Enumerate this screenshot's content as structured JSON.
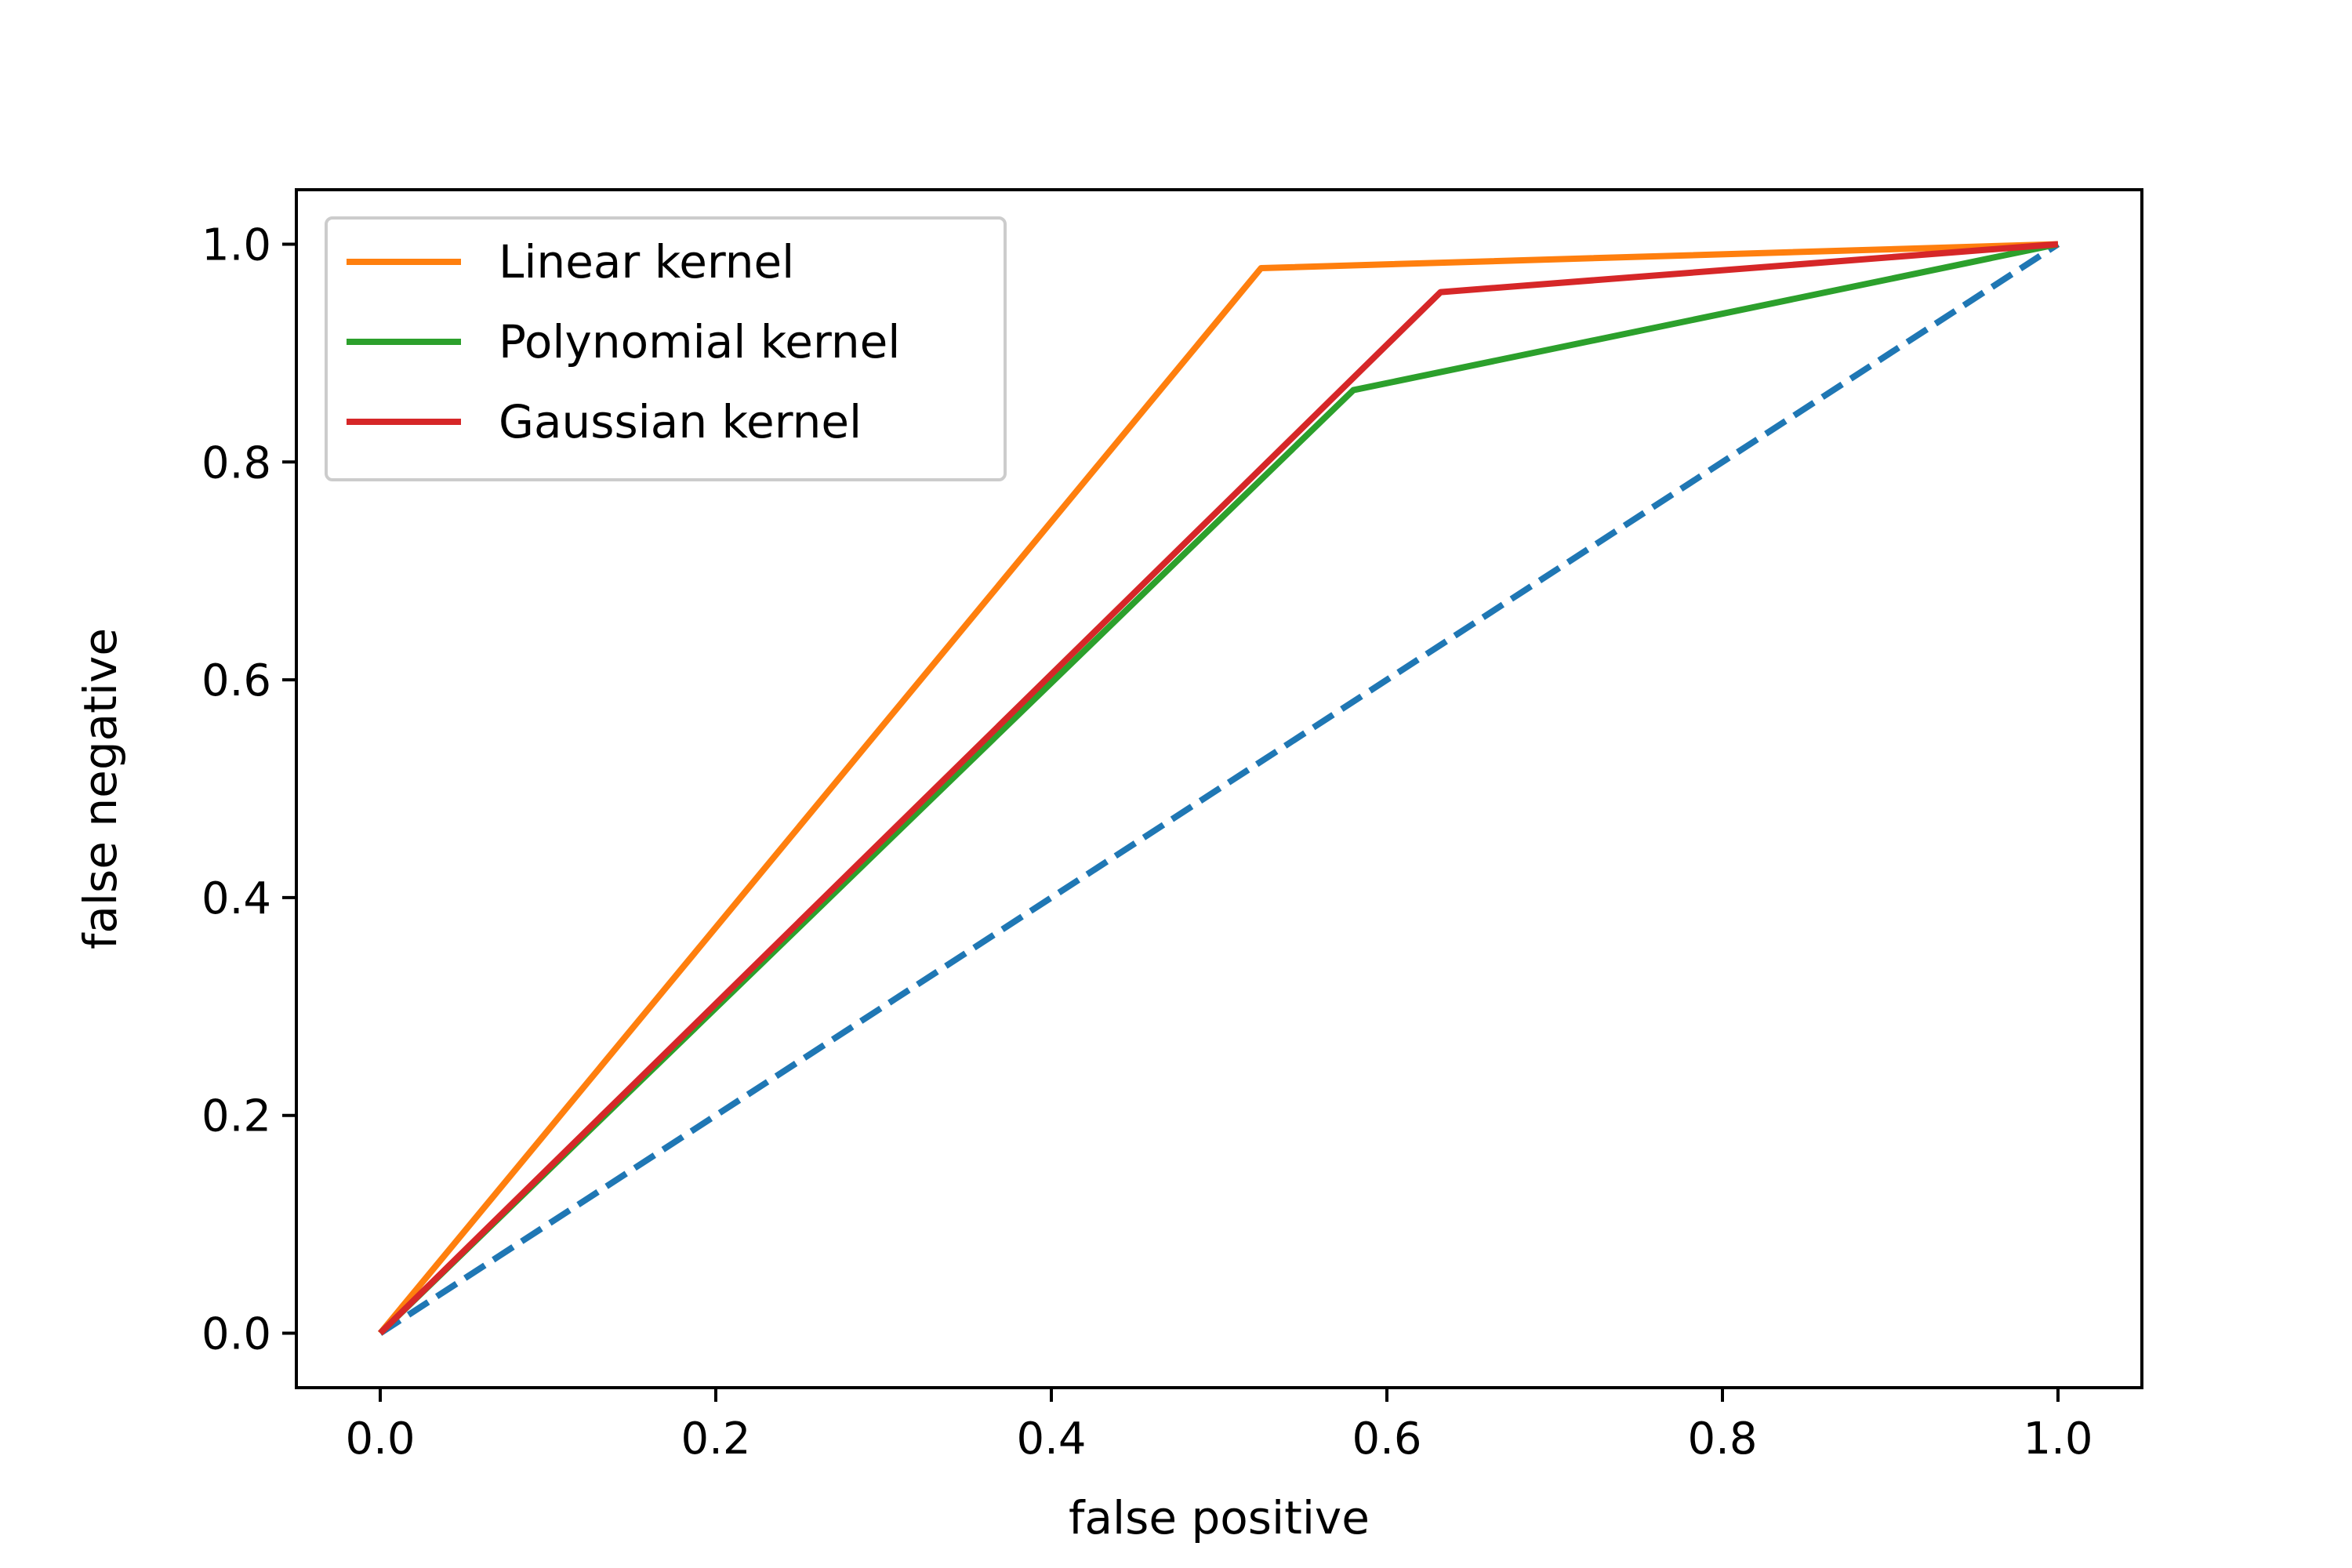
{
  "chart_data": {
    "type": "line",
    "title": "",
    "xlabel": "false positive",
    "ylabel": "false negative",
    "xlim": [
      -0.05,
      1.05
    ],
    "ylim": [
      -0.05,
      1.05
    ],
    "xticks": [
      0.0,
      0.2,
      0.4,
      0.6,
      0.8,
      1.0
    ],
    "xtick_labels": [
      "0.0",
      "0.2",
      "0.4",
      "0.6",
      "0.8",
      "1.0"
    ],
    "yticks": [
      0.0,
      0.2,
      0.4,
      0.6,
      0.8,
      1.0
    ],
    "ytick_labels": [
      "0.0",
      "0.2",
      "0.4",
      "0.6",
      "0.8",
      "1.0"
    ],
    "grid": false,
    "legend_position": "top-left",
    "series": [
      {
        "name": "Linear kernel",
        "color": "#ff7f0e",
        "dash": "solid",
        "x": [
          0.0,
          0.525,
          1.0
        ],
        "y": [
          0.0,
          0.978,
          1.0
        ]
      },
      {
        "name": "Polynomial kernel",
        "color": "#2ca02c",
        "dash": "solid",
        "x": [
          0.0,
          0.58,
          1.0
        ],
        "y": [
          0.0,
          0.866,
          1.0
        ]
      },
      {
        "name": "Gaussian kernel",
        "color": "#d62728",
        "dash": "solid",
        "x": [
          0.0,
          0.632,
          1.0
        ],
        "y": [
          0.0,
          0.956,
          1.0
        ]
      },
      {
        "color": "#1f77b4",
        "dash": "dashed",
        "x": [
          0.0,
          1.0
        ],
        "y": [
          0.0,
          1.0
        ]
      }
    ]
  }
}
